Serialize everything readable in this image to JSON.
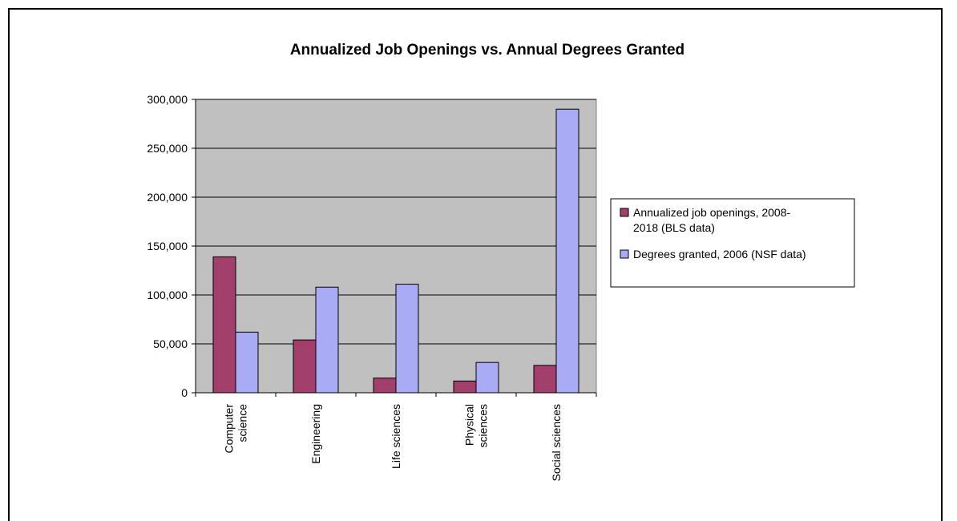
{
  "chart_data": {
    "type": "bar",
    "title": "Annualized Job Openings vs. Annual Degrees Granted",
    "xlabel": "",
    "ylabel": "",
    "categories": [
      [
        "Computer",
        "science"
      ],
      [
        "Engineering"
      ],
      [
        "Life sciences"
      ],
      [
        "Physical",
        "sciences"
      ],
      [
        "Social sciences"
      ]
    ],
    "series": [
      {
        "name": "Annualized job openings, 2008-2018 (BLS data)",
        "legend_lines": [
          "Annualized job openings, 2008-",
          "2018 (BLS data)"
        ],
        "color": "#a33f6b",
        "values": [
          139000,
          54000,
          15000,
          12000,
          28000
        ]
      },
      {
        "name": "Degrees granted, 2006 (NSF data)",
        "legend_lines": [
          "Degrees granted, 2006 (NSF data)"
        ],
        "color": "#a9acf5",
        "values": [
          62000,
          108000,
          111000,
          31000,
          290000
        ]
      }
    ],
    "ylim": [
      0,
      300000
    ],
    "yticks": [
      0,
      50000,
      100000,
      150000,
      200000,
      250000,
      300000
    ],
    "ytick_labels": [
      "0",
      "50,000",
      "100,000",
      "150,000",
      "200,000",
      "250,000",
      "300,000"
    ],
    "plot_background": "#c0c0c0",
    "grid": true,
    "legend_position": "right"
  }
}
